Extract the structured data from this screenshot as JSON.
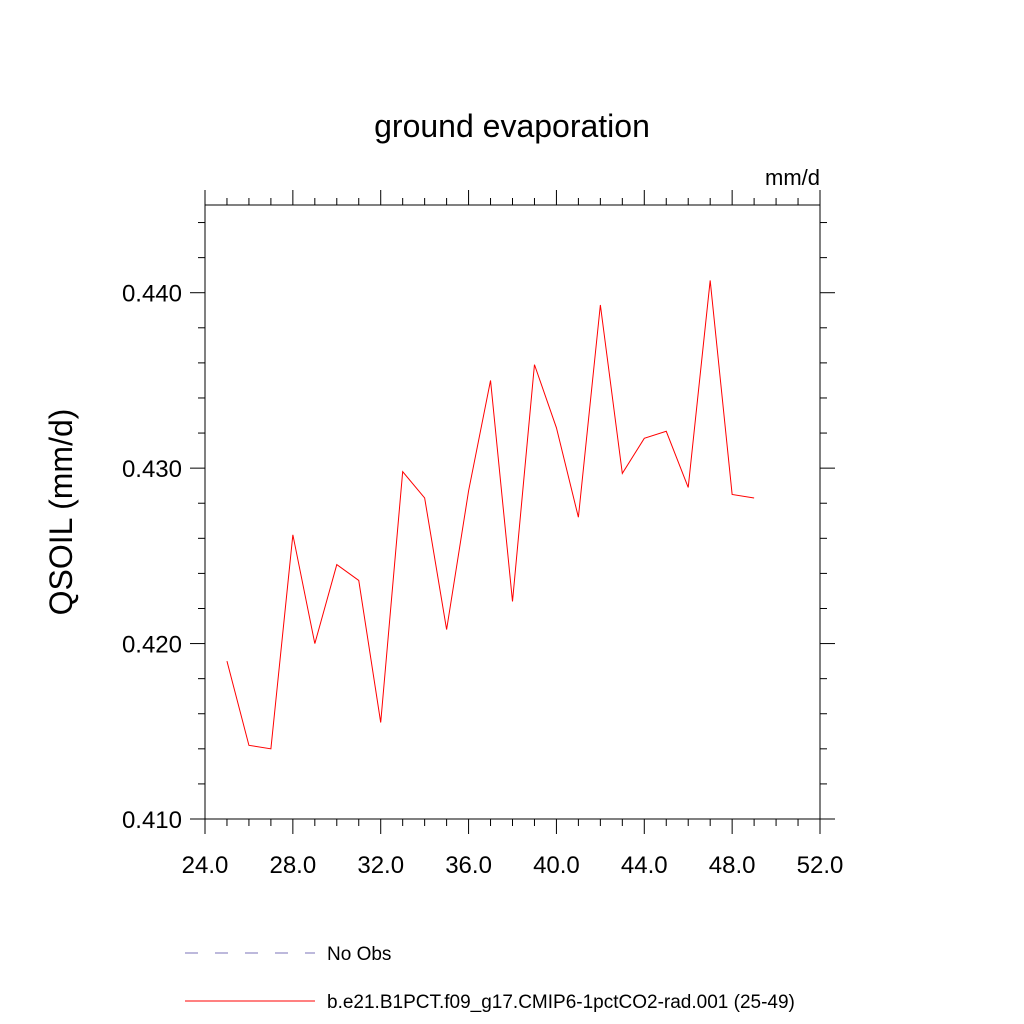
{
  "chart_data": {
    "type": "line",
    "title": "ground evaporation",
    "units_label": "mm/d",
    "ylabel": "QSOIL  (mm/d)",
    "xlabel": "",
    "xlim": [
      24.0,
      52.0
    ],
    "ylim": [
      0.41,
      0.445
    ],
    "x_ticks": [
      24.0,
      28.0,
      32.0,
      36.0,
      40.0,
      44.0,
      48.0,
      52.0
    ],
    "x_tick_labels": [
      "24.0",
      "28.0",
      "32.0",
      "36.0",
      "40.0",
      "44.0",
      "48.0",
      "52.0"
    ],
    "y_ticks": [
      0.41,
      0.42,
      0.43,
      0.44
    ],
    "y_tick_labels": [
      "0.410",
      "0.420",
      "0.430",
      "0.440"
    ],
    "grid": false,
    "legend_position": "bottom",
    "series": [
      {
        "name": "No Obs",
        "color": "#7b73b8",
        "dash": "dashed",
        "x": [],
        "values": []
      },
      {
        "name": "b.e21.B1PCT.f09_g17.CMIP6-1pctCO2-rad.001 (25-49)",
        "color": "#ff0000",
        "dash": "solid",
        "x": [
          25,
          26,
          27,
          28,
          29,
          30,
          31,
          32,
          33,
          34,
          35,
          36,
          37,
          38,
          39,
          40,
          41,
          42,
          43,
          44,
          45,
          46,
          47,
          48,
          49
        ],
        "values": [
          0.419,
          0.4142,
          0.414,
          0.4262,
          0.42,
          0.4245,
          0.4236,
          0.4155,
          0.4298,
          0.4283,
          0.4208,
          0.4287,
          0.435,
          0.4224,
          0.4359,
          0.4323,
          0.4272,
          0.4393,
          0.4297,
          0.4317,
          0.4321,
          0.4289,
          0.4407,
          0.4285,
          0.4283
        ]
      }
    ]
  }
}
